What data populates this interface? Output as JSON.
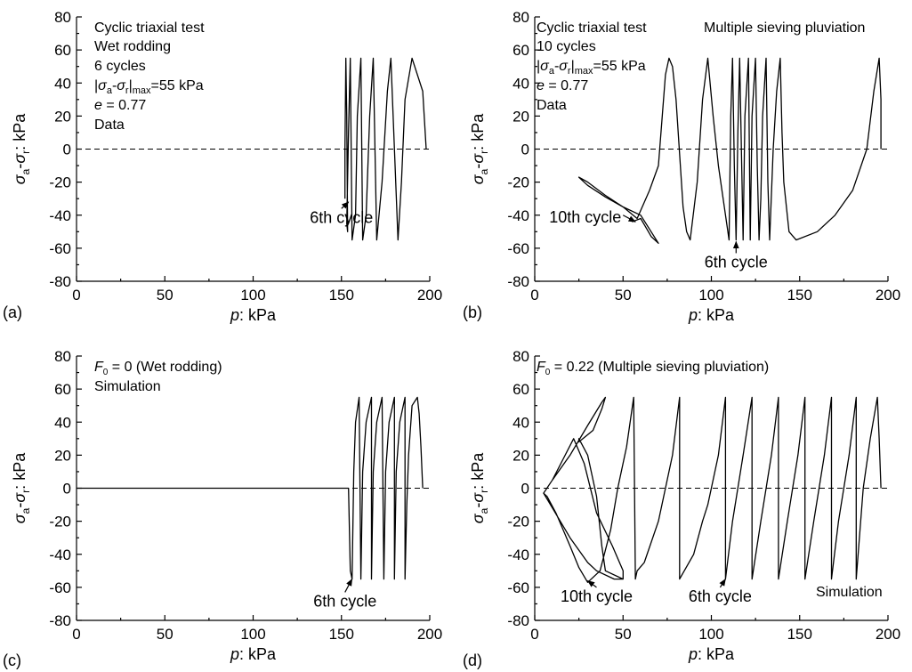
{
  "chart_data": [
    {
      "panel": "(a)",
      "type": "line",
      "xlabel": {
        "var": "p",
        "rest": ": kPa"
      },
      "ylabel": {
        "sub1": "a",
        "sub2": "r",
        "rest": ": kPa"
      },
      "xlim": [
        0,
        200
      ],
      "ylim": [
        -80,
        80
      ],
      "xticks": [
        0,
        50,
        100,
        150,
        200
      ],
      "yticks": [
        80,
        60,
        40,
        20,
        0,
        -20,
        -40,
        -60,
        -80
      ],
      "zero_line": true,
      "annotations": [
        {
          "name": "test-type-label",
          "text": "Cyclic triaxial test"
        },
        {
          "name": "method-label",
          "text": "Wet rodding"
        },
        {
          "name": "cycles-label",
          "text": "6 cycles"
        },
        {
          "name": "amplitude-label",
          "rich": "amplitude"
        },
        {
          "name": "void-ratio-label",
          "rich": "void",
          "value": "= 0.77"
        },
        {
          "name": "source-label",
          "text": "Data"
        }
      ],
      "callouts": [
        {
          "name": "sixth-cycle-callout",
          "text": "6th cycle",
          "from": [
            150,
            -36
          ],
          "to": [
            154,
            -32
          ]
        }
      ],
      "series": [
        {
          "points": [
            [
              198,
              0
            ],
            [
              196,
              35
            ],
            [
              190,
              55
            ],
            [
              186,
              30
            ],
            [
              184,
              -20
            ],
            [
              182,
              -55
            ],
            [
              178,
              55
            ],
            [
              176,
              35
            ],
            [
              173,
              -20
            ],
            [
              170,
              -55
            ],
            [
              168,
              55
            ],
            [
              166,
              20
            ],
            [
              164,
              -40
            ],
            [
              162,
              -55
            ],
            [
              161,
              55
            ],
            [
              159,
              20
            ],
            [
              158,
              -40
            ],
            [
              156,
              -55
            ],
            [
              155,
              55
            ],
            [
              154,
              10
            ],
            [
              153,
              -45
            ],
            [
              153.5,
              -50
            ],
            [
              153,
              20
            ],
            [
              152.5,
              55
            ],
            [
              152,
              0
            ],
            [
              152,
              -30
            ]
          ]
        }
      ]
    },
    {
      "panel": "(b)",
      "type": "line",
      "xlabel": {
        "var": "p",
        "rest": ": kPa"
      },
      "ylabel": {
        "sub1": "a",
        "sub2": "r",
        "rest": ": kPa"
      },
      "xlim": [
        0,
        200
      ],
      "ylim": [
        -80,
        80
      ],
      "xticks": [
        0,
        50,
        100,
        150,
        200
      ],
      "yticks": [
        80,
        60,
        40,
        20,
        0,
        -20,
        -40,
        -60,
        -80
      ],
      "zero_line": true,
      "annotations": [
        {
          "name": "test-type-label",
          "text": "Cyclic triaxial test"
        },
        {
          "name": "cycles-label",
          "text": "10 cycles"
        },
        {
          "name": "amplitude-label",
          "rich": "amplitude"
        },
        {
          "name": "void-ratio-label",
          "rich": "void",
          "value": "= 0.77"
        },
        {
          "name": "source-label",
          "text": "Data"
        },
        {
          "name": "method-label",
          "text": "Multiple sieving pluviation"
        }
      ],
      "callouts": [
        {
          "name": "tenth-cycle-callout",
          "text": "10th cycle",
          "from": [
            50,
            -40
          ],
          "to": [
            57,
            -44
          ]
        },
        {
          "name": "sixth-cycle-callout",
          "text": "6th cycle",
          "from": [
            114,
            -63
          ],
          "to": [
            114,
            -56
          ]
        }
      ],
      "series": [
        {
          "points": [
            [
              196,
              0
            ],
            [
              196,
              30
            ],
            [
              195,
              55
            ],
            [
              192,
              35
            ],
            [
              188,
              0
            ],
            [
              180,
              -25
            ],
            [
              170,
              -40
            ],
            [
              160,
              -50
            ],
            [
              148,
              -55
            ],
            [
              144,
              -50
            ],
            [
              141,
              -20
            ],
            [
              140,
              10
            ],
            [
              139,
              55
            ],
            [
              137,
              35
            ],
            [
              135,
              0
            ],
            [
              133,
              -55
            ],
            [
              132,
              -20
            ],
            [
              131,
              55
            ],
            [
              129,
              20
            ],
            [
              128,
              -30
            ],
            [
              127,
              -55
            ],
            [
              126,
              -10
            ],
            [
              125,
              55
            ],
            [
              123,
              20
            ],
            [
              122,
              -55
            ],
            [
              121,
              55
            ],
            [
              119,
              20
            ],
            [
              118,
              -55
            ],
            [
              116,
              55
            ],
            [
              115,
              10
            ],
            [
              114,
              -55
            ],
            [
              113,
              -10
            ],
            [
              112,
              55
            ],
            [
              111,
              20
            ],
            [
              110,
              -55
            ],
            [
              104,
              -10
            ],
            [
              101,
              20
            ],
            [
              98,
              55
            ],
            [
              95,
              30
            ],
            [
              92,
              -20
            ],
            [
              88,
              -55
            ],
            [
              86,
              -50
            ],
            [
              84,
              -35
            ],
            [
              80,
              30
            ],
            [
              78,
              50
            ],
            [
              76,
              55
            ],
            [
              74,
              45
            ],
            [
              70,
              -10
            ],
            [
              65,
              -25
            ],
            [
              58,
              -42
            ],
            [
              50,
              -35
            ],
            [
              40,
              -28
            ],
            [
              30,
              -20
            ],
            [
              25,
              -17
            ],
            [
              30,
              -22
            ],
            [
              40,
              -29
            ],
            [
              50,
              -35
            ],
            [
              60,
              -40
            ],
            [
              70,
              -57
            ],
            [
              66,
              -53
            ],
            [
              60,
              -42
            ],
            [
              55,
              -44
            ]
          ]
        }
      ]
    },
    {
      "panel": "(c)",
      "type": "line",
      "xlabel": {
        "var": "p",
        "rest": ": kPa"
      },
      "ylabel": {
        "sub1": "a",
        "sub2": "r",
        "rest": ": kPa"
      },
      "xlim": [
        0,
        200
      ],
      "ylim": [
        -80,
        80
      ],
      "xticks": [
        0,
        50,
        100,
        150,
        200
      ],
      "yticks": [
        80,
        60,
        40,
        20,
        0,
        -20,
        -40,
        -60,
        -80
      ],
      "zero_line": true,
      "annotations": [
        {
          "name": "parameter-label",
          "rich": "f0",
          "value": "= 0 (Wet rodding)"
        },
        {
          "name": "source-label",
          "text": "Simulation"
        }
      ],
      "callouts": [
        {
          "name": "sixth-cycle-callout",
          "text": "6th cycle",
          "from": [
            152,
            -63
          ],
          "to": [
            156,
            -55
          ]
        }
      ],
      "series": [
        {
          "points": [
            [
              196,
              0
            ],
            [
              195,
              25
            ],
            [
              194,
              45
            ],
            [
              193,
              55
            ],
            [
              190,
              50
            ],
            [
              188,
              20
            ],
            [
              187,
              -10
            ],
            [
              186,
              -55
            ],
            [
              186,
              55
            ],
            [
              183,
              40
            ],
            [
              181,
              10
            ],
            [
              180,
              -55
            ],
            [
              180,
              55
            ],
            [
              177,
              40
            ],
            [
              175,
              10
            ],
            [
              174,
              -55
            ],
            [
              173,
              55
            ],
            [
              170,
              40
            ],
            [
              168,
              10
            ],
            [
              167,
              -55
            ],
            [
              167,
              55
            ],
            [
              164,
              40
            ],
            [
              162,
              10
            ],
            [
              161,
              -55
            ],
            [
              160,
              55
            ],
            [
              158,
              40
            ],
            [
              157,
              10
            ],
            [
              156,
              -55
            ],
            [
              155,
              -50
            ],
            [
              154,
              0
            ],
            [
              0,
              0
            ]
          ]
        }
      ]
    },
    {
      "panel": "(d)",
      "type": "line",
      "xlabel": {
        "var": "p",
        "rest": ": kPa"
      },
      "ylabel": {
        "sub1": "a",
        "sub2": "r",
        "rest": ": kPa"
      },
      "xlim": [
        0,
        200
      ],
      "ylim": [
        -80,
        80
      ],
      "xticks": [
        0,
        50,
        100,
        150,
        200
      ],
      "yticks": [
        80,
        60,
        40,
        20,
        0,
        -20,
        -40,
        -60,
        -80
      ],
      "zero_line": true,
      "annotations": [
        {
          "name": "parameter-label",
          "rich": "f0",
          "value": "= 0.22 (Multiple sieving pluviation)"
        },
        {
          "name": "source-label",
          "text": "Simulation"
        }
      ],
      "callouts": [
        {
          "name": "tenth-cycle-callout",
          "text": "10th cycle",
          "from": [
            35,
            -60
          ],
          "to": [
            30,
            -56
          ]
        },
        {
          "name": "sixth-cycle-callout",
          "text": "6th cycle",
          "from": [
            105,
            -60
          ],
          "to": [
            108,
            -55
          ]
        }
      ],
      "series": [
        {
          "points": [
            [
              196,
              0
            ],
            [
              195,
              30
            ],
            [
              194,
              55
            ],
            [
              190,
              30
            ],
            [
              186,
              0
            ],
            [
              182,
              -55
            ],
            [
              182,
              55
            ],
            [
              178,
              20
            ],
            [
              172,
              -20
            ],
            [
              168,
              -55
            ],
            [
              168,
              55
            ],
            [
              164,
              20
            ],
            [
              158,
              -20
            ],
            [
              153,
              -55
            ],
            [
              153,
              55
            ],
            [
              149,
              20
            ],
            [
              143,
              -20
            ],
            [
              138,
              -55
            ],
            [
              138,
              55
            ],
            [
              134,
              20
            ],
            [
              128,
              -20
            ],
            [
              123,
              -55
            ],
            [
              123,
              55
            ],
            [
              118,
              20
            ],
            [
              112,
              -20
            ],
            [
              108,
              -55
            ],
            [
              108,
              55
            ],
            [
              104,
              20
            ],
            [
              98,
              -10
            ],
            [
              95,
              -20
            ],
            [
              90,
              -40
            ],
            [
              82,
              -55
            ],
            [
              82,
              55
            ],
            [
              78,
              20
            ],
            [
              70,
              -20
            ],
            [
              62,
              -45
            ],
            [
              58,
              -50
            ],
            [
              57,
              -55
            ],
            [
              56,
              55
            ],
            [
              52,
              25
            ],
            [
              47,
              0
            ],
            [
              43,
              -25
            ],
            [
              37,
              -50
            ],
            [
              30,
              -57
            ],
            [
              25,
              -48
            ],
            [
              20,
              -35
            ],
            [
              12,
              -15
            ],
            [
              7,
              -5
            ],
            [
              5,
              -3
            ],
            [
              10,
              5
            ],
            [
              20,
              20
            ],
            [
              30,
              38
            ],
            [
              38,
              52
            ],
            [
              40,
              55
            ],
            [
              38,
              48
            ],
            [
              33,
              35
            ],
            [
              25,
              28
            ],
            [
              25,
              30
            ],
            [
              30,
              20
            ],
            [
              35,
              -5
            ],
            [
              38,
              -35
            ],
            [
              40,
              -50
            ],
            [
              50,
              -55
            ],
            [
              50,
              -50
            ],
            [
              44,
              -35
            ],
            [
              35,
              -15
            ],
            [
              28,
              15
            ],
            [
              22,
              30
            ],
            [
              10,
              5
            ],
            [
              5,
              -3
            ],
            [
              10,
              -12
            ],
            [
              20,
              -30
            ],
            [
              30,
              -45
            ],
            [
              35,
              -50
            ],
            [
              45,
              -55
            ],
            [
              50,
              -55
            ]
          ]
        }
      ]
    }
  ]
}
